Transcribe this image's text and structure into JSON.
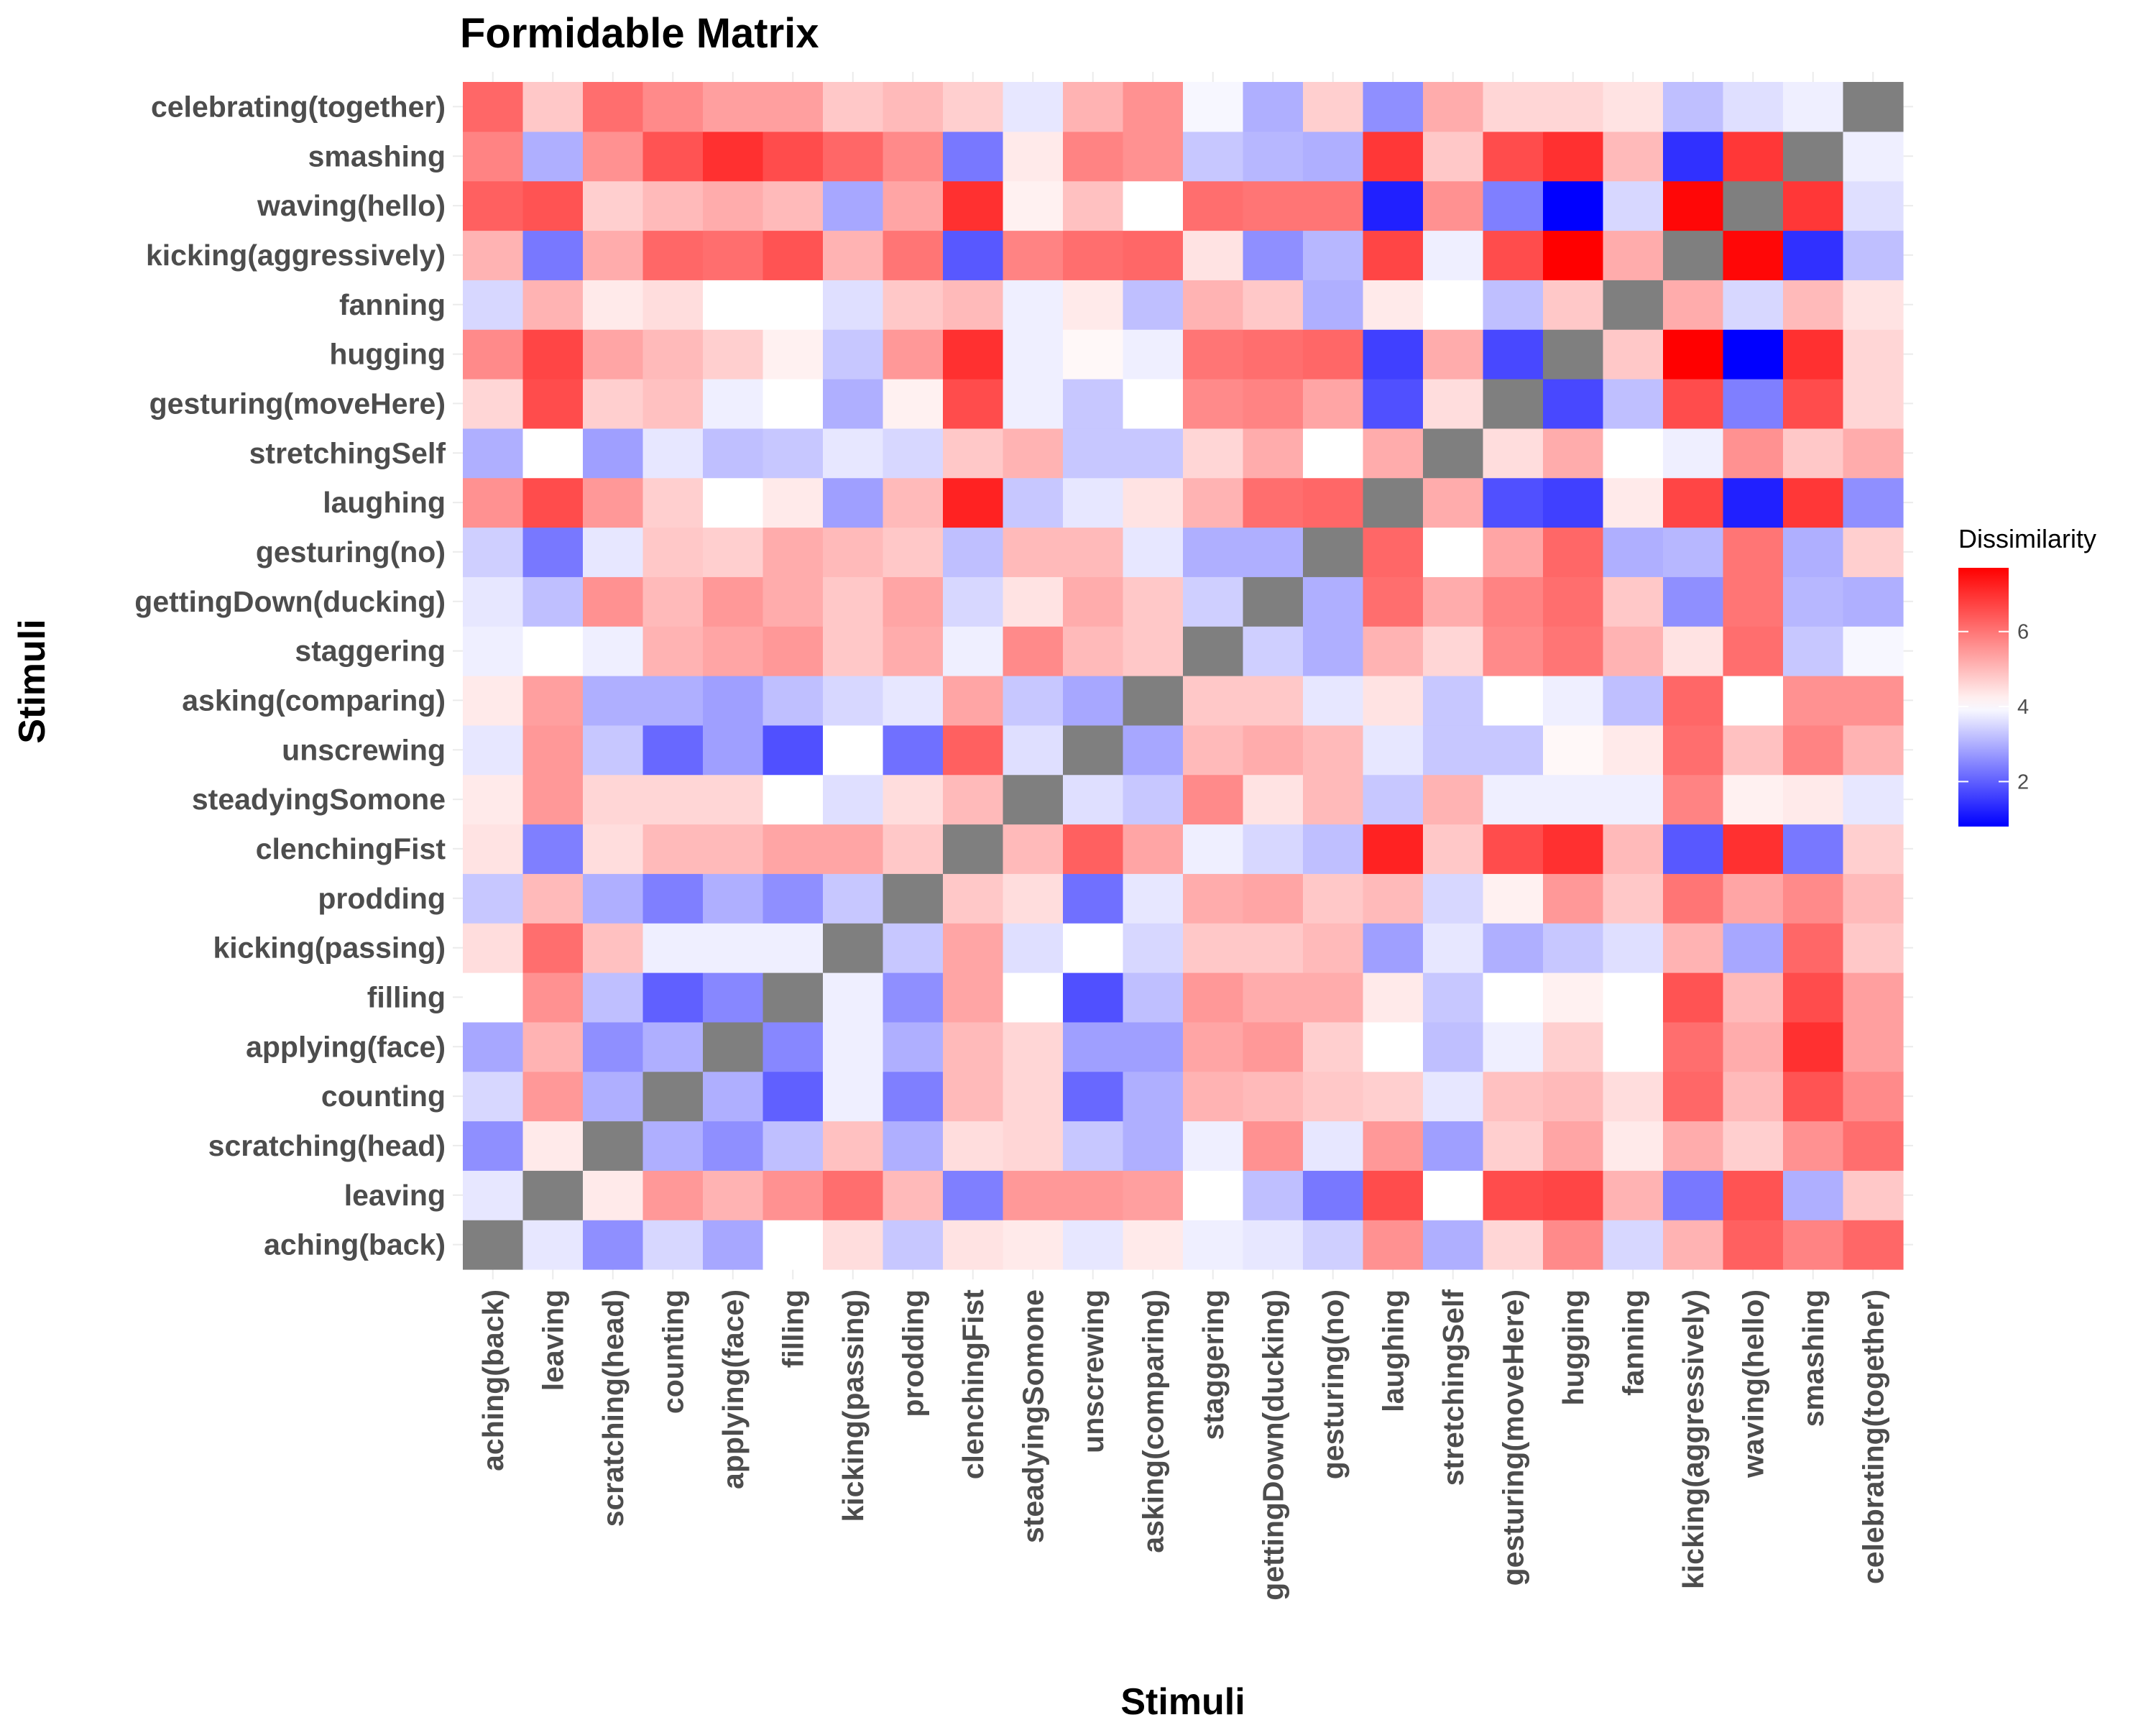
{
  "chart_data": {
    "type": "heatmap",
    "title": "Formidable Matrix",
    "xlabel": "Stimuli",
    "ylabel": "Stimuli",
    "categories": [
      "aching(back)",
      "leaving",
      "scratching(head)",
      "counting",
      "applying(face)",
      "filling",
      "kicking(passing)",
      "prodding",
      "clenchingFist",
      "steadyingSomone",
      "unscrewing",
      "asking(comparing)",
      "staggering",
      "gettingDown(ducking)",
      "gesturing(no)",
      "laughing",
      "stretchingSelf",
      "gesturing(moveHere)",
      "hugging",
      "fanning",
      "kicking(aggressively)",
      "waving(hello)",
      "smashing",
      "celebrating(together)"
    ],
    "values": [
      [
        null,
        3.7,
        2.6,
        3.5,
        2.9,
        4.0,
        4.5,
        3.3,
        4.4,
        4.3,
        3.7,
        4.3,
        3.8,
        3.7,
        3.4,
        5.6,
        3.0,
        4.6,
        5.7,
        3.5,
        5.1,
        6.3,
        5.8,
        6.2
      ],
      [
        3.7,
        null,
        4.3,
        5.5,
        5.1,
        5.6,
        6.1,
        5.0,
        2.4,
        5.5,
        5.5,
        5.4,
        4.0,
        3.2,
        2.3,
        6.6,
        4.0,
        6.6,
        6.7,
        5.1,
        2.3,
        6.5,
        3.0,
        4.8
      ],
      [
        2.6,
        4.3,
        null,
        3.0,
        2.6,
        3.2,
        4.9,
        3.0,
        4.5,
        4.6,
        3.3,
        3.0,
        3.8,
        5.6,
        3.7,
        5.5,
        2.8,
        4.7,
        5.3,
        4.3,
        5.2,
        4.7,
        5.6,
        6.1
      ],
      [
        3.5,
        5.5,
        3.0,
        null,
        3.0,
        2.0,
        3.8,
        2.4,
        5.0,
        4.6,
        2.1,
        3.0,
        5.1,
        5.0,
        4.8,
        4.7,
        3.7,
        4.9,
        5.0,
        4.5,
        6.2,
        5.0,
        6.5,
        5.7
      ],
      [
        2.9,
        5.1,
        2.6,
        3.0,
        null,
        2.5,
        3.8,
        3.0,
        5.0,
        4.6,
        2.8,
        2.8,
        5.3,
        5.5,
        4.7,
        4.0,
        3.2,
        3.8,
        4.7,
        4.0,
        6.1,
        5.2,
        7.0,
        5.4
      ],
      [
        4.0,
        5.6,
        3.2,
        2.0,
        2.5,
        null,
        3.8,
        2.6,
        5.3,
        4.0,
        1.8,
        3.2,
        5.5,
        5.2,
        5.2,
        4.3,
        3.3,
        4.0,
        4.2,
        4.0,
        6.5,
        5.0,
        6.6,
        5.4
      ],
      [
        4.5,
        6.1,
        4.9,
        3.8,
        3.8,
        3.8,
        null,
        3.3,
        5.3,
        3.6,
        4.0,
        3.5,
        4.8,
        4.8,
        5.0,
        2.8,
        3.7,
        3.0,
        3.3,
        3.6,
        5.1,
        2.9,
        6.2,
        4.8
      ],
      [
        3.3,
        5.0,
        3.0,
        2.4,
        3.0,
        2.6,
        3.3,
        null,
        4.8,
        4.5,
        2.2,
        3.7,
        5.2,
        5.3,
        4.8,
        5.0,
        3.5,
        4.2,
        5.5,
        4.8,
        6.0,
        5.3,
        5.7,
        5.0
      ],
      [
        4.4,
        2.4,
        4.5,
        5.0,
        5.0,
        5.3,
        5.3,
        4.8,
        null,
        5.0,
        6.3,
        5.3,
        3.8,
        3.5,
        3.2,
        7.2,
        4.8,
        6.6,
        7.0,
        5.0,
        1.9,
        7.0,
        2.3,
        4.7
      ],
      [
        4.3,
        5.5,
        4.6,
        4.6,
        4.6,
        4.0,
        3.6,
        4.5,
        5.0,
        null,
        3.6,
        3.3,
        5.7,
        4.4,
        5.0,
        3.3,
        5.1,
        3.8,
        3.8,
        3.8,
        5.8,
        4.2,
        4.3,
        3.7
      ],
      [
        3.7,
        5.5,
        3.3,
        2.1,
        2.8,
        1.8,
        4.0,
        2.2,
        6.3,
        3.6,
        null,
        2.9,
        5.0,
        5.2,
        5.0,
        3.7,
        3.3,
        3.3,
        4.1,
        4.3,
        6.1,
        4.9,
        5.8,
        5.1
      ],
      [
        4.3,
        5.4,
        3.0,
        3.0,
        2.8,
        3.2,
        3.5,
        3.7,
        5.3,
        3.3,
        2.9,
        null,
        4.8,
        4.8,
        3.7,
        4.4,
        3.3,
        4.0,
        3.8,
        3.2,
        6.2,
        4.0,
        5.6,
        5.6
      ],
      [
        3.8,
        4.0,
        3.8,
        5.1,
        5.3,
        5.5,
        4.8,
        5.2,
        3.8,
        5.7,
        5.0,
        4.8,
        null,
        3.4,
        3.0,
        5.1,
        4.6,
        5.7,
        6.0,
        5.1,
        4.4,
        6.1,
        3.3,
        3.9
      ],
      [
        3.7,
        3.2,
        5.6,
        5.0,
        5.5,
        5.2,
        4.8,
        5.3,
        3.5,
        4.4,
        5.2,
        4.8,
        3.4,
        null,
        3.0,
        6.1,
        5.2,
        5.8,
        6.1,
        4.8,
        2.6,
        6.0,
        3.1,
        3.0
      ],
      [
        3.4,
        2.3,
        3.7,
        4.8,
        4.7,
        5.2,
        5.0,
        4.8,
        3.2,
        5.0,
        5.0,
        3.7,
        3.0,
        3.0,
        null,
        6.2,
        4.0,
        5.3,
        6.2,
        3.0,
        3.1,
        6.0,
        3.0,
        4.7
      ],
      [
        5.6,
        6.6,
        5.5,
        4.7,
        4.0,
        4.3,
        2.8,
        5.0,
        7.2,
        3.3,
        3.7,
        4.4,
        5.1,
        6.1,
        6.2,
        null,
        5.2,
        1.8,
        1.6,
        4.3,
        6.7,
        1.2,
        6.9,
        2.6
      ],
      [
        3.0,
        4.0,
        2.8,
        3.7,
        3.2,
        3.3,
        3.7,
        3.5,
        4.8,
        5.1,
        3.3,
        3.3,
        4.6,
        5.2,
        4.0,
        5.2,
        null,
        4.5,
        5.2,
        4.0,
        3.8,
        5.6,
        4.8,
        5.2
      ],
      [
        4.6,
        6.6,
        4.7,
        4.9,
        3.8,
        4.0,
        3.0,
        4.2,
        6.6,
        3.8,
        3.3,
        4.0,
        5.7,
        5.8,
        5.3,
        1.8,
        4.5,
        null,
        1.7,
        3.2,
        6.6,
        2.4,
        6.6,
        4.6
      ],
      [
        5.7,
        6.7,
        5.3,
        5.0,
        4.7,
        4.2,
        3.3,
        5.5,
        7.0,
        3.8,
        4.1,
        3.8,
        6.0,
        6.1,
        6.2,
        1.6,
        5.2,
        1.7,
        null,
        4.8,
        7.7,
        0.8,
        7.0,
        4.6
      ],
      [
        3.5,
        5.1,
        4.3,
        4.5,
        4.0,
        4.0,
        3.6,
        4.8,
        5.0,
        3.8,
        4.3,
        3.2,
        5.1,
        4.8,
        3.0,
        4.3,
        4.0,
        3.2,
        4.8,
        null,
        5.2,
        3.5,
        5.0,
        4.4
      ],
      [
        5.1,
        2.3,
        5.2,
        6.2,
        6.1,
        6.5,
        5.1,
        6.0,
        1.9,
        5.8,
        6.1,
        6.2,
        4.4,
        2.6,
        3.1,
        6.7,
        3.8,
        6.6,
        7.7,
        5.2,
        null,
        7.6,
        1.4,
        3.2
      ],
      [
        6.3,
        6.5,
        4.7,
        5.0,
        5.2,
        5.0,
        2.9,
        5.3,
        7.0,
        4.2,
        4.9,
        4.0,
        6.1,
        6.0,
        6.0,
        1.2,
        5.6,
        2.4,
        0.8,
        3.5,
        7.6,
        null,
        6.9,
        3.6
      ],
      [
        5.8,
        3.0,
        5.6,
        6.5,
        7.0,
        6.6,
        6.2,
        5.7,
        2.3,
        4.3,
        5.8,
        5.6,
        3.3,
        3.1,
        3.0,
        6.9,
        4.8,
        6.6,
        7.0,
        5.0,
        1.4,
        6.9,
        null,
        3.8
      ],
      [
        6.2,
        4.8,
        6.1,
        5.7,
        5.4,
        5.4,
        4.8,
        5.0,
        4.7,
        3.7,
        5.1,
        5.6,
        3.9,
        3.0,
        4.7,
        2.6,
        5.2,
        4.6,
        4.6,
        4.4,
        3.2,
        3.6,
        3.8,
        null
      ]
    ],
    "legend": {
      "title": "Dissimilarity",
      "position": "right",
      "ticks": [
        "2",
        "4",
        "6"
      ],
      "tick_values": [
        2,
        4,
        6
      ],
      "min": 0.8,
      "max": 7.7,
      "midpoint": 4
    },
    "colors": {
      "low": "#0000ff",
      "mid": "#ffffff",
      "high": "#ff0000",
      "diagonal": "#7f7f7f"
    },
    "grid": false
  }
}
